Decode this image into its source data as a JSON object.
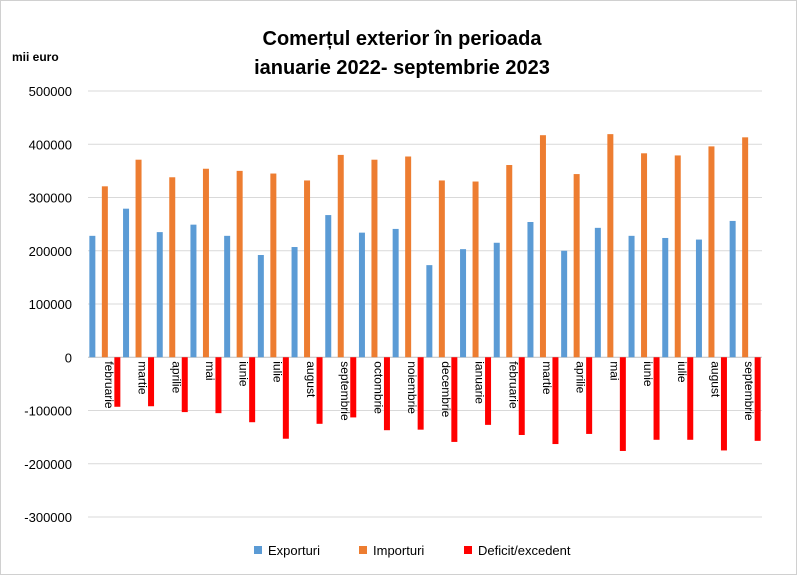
{
  "chart_data": {
    "type": "bar",
    "title_line1": "Comerțul exterior în perioada",
    "title_line2": "ianuarie 2022- septembrie 2023",
    "ylabel": "mii euro",
    "ylim": [
      -300000,
      500000
    ],
    "yticks": [
      500000,
      400000,
      300000,
      200000,
      100000,
      0,
      -100000,
      -200000,
      -300000
    ],
    "ytick_labels": [
      "500000",
      "400000",
      "300000",
      "200000",
      "100000",
      "0",
      "-100000",
      "-200000",
      "-300000"
    ],
    "grid": true,
    "legend_position": "bottom",
    "categories": [
      "februarie",
      "martie",
      "aprilie",
      "mai",
      "iunie",
      "iulie",
      "august",
      "septembrie",
      "octombrie",
      "noiembrie",
      "decembrie",
      "ianuarie",
      "februarie",
      "martie",
      "aprilie",
      "mai",
      "iunie",
      "iulie",
      "august",
      "septembrie"
    ],
    "series": [
      {
        "name": "Exporturi",
        "color": "#5b9bd5",
        "values": [
          228000,
          279000,
          235000,
          249000,
          228000,
          192000,
          207000,
          267000,
          234000,
          241000,
          173000,
          203000,
          215000,
          254000,
          200000,
          243000,
          228000,
          224000,
          221000,
          256000
        ]
      },
      {
        "name": "Importuri",
        "color": "#ed7d31",
        "values": [
          321000,
          371000,
          338000,
          354000,
          350000,
          345000,
          332000,
          380000,
          371000,
          377000,
          332000,
          330000,
          361000,
          417000,
          344000,
          419000,
          383000,
          379000,
          396000,
          413000
        ]
      },
      {
        "name": "Deficit/excedent",
        "color": "#ff0000",
        "values": [
          -93000,
          -92000,
          -103000,
          -105000,
          -122000,
          -153000,
          -125000,
          -113000,
          -137000,
          -136000,
          -159000,
          -127000,
          -146000,
          -163000,
          -144000,
          -176000,
          -155000,
          -155000,
          -175000,
          -157000
        ]
      }
    ]
  }
}
